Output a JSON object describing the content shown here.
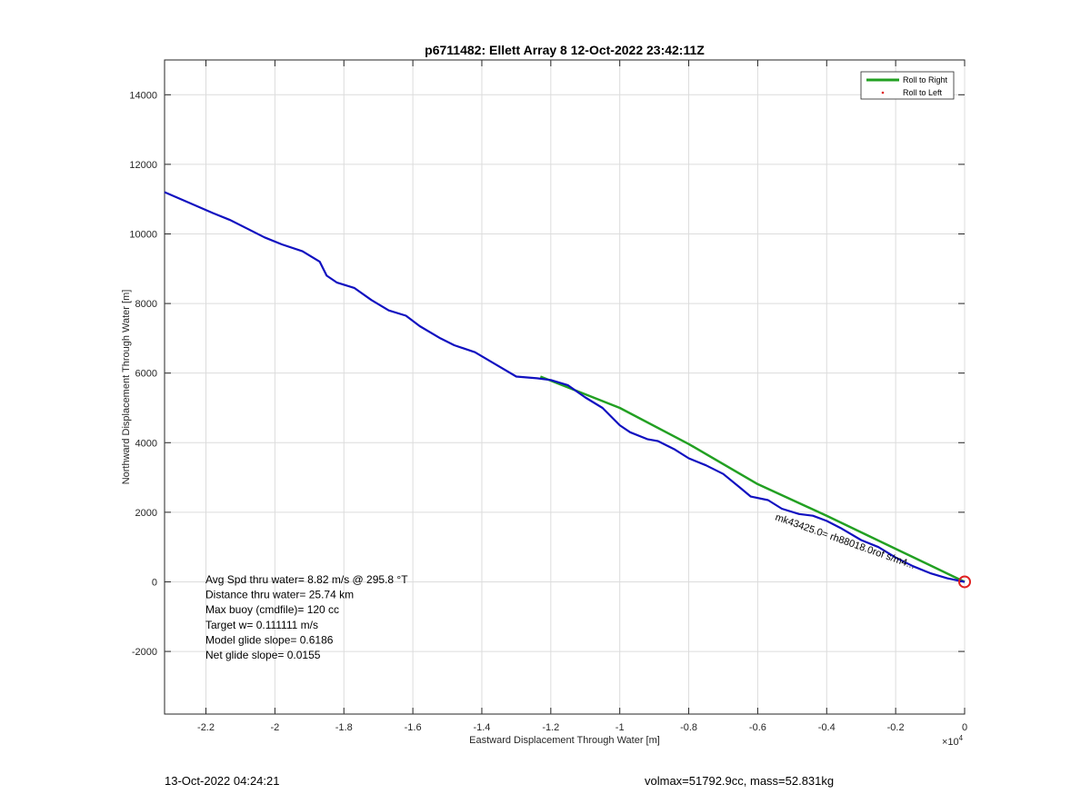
{
  "chart_data": {
    "type": "line",
    "title": "p6711482: Ellett Array 8 12-Oct-2022 23:42:11Z",
    "xlabel": "Eastward Displacement Through Water [m]",
    "ylabel": "Northward Displacement Through Water [m]",
    "x_exponent_label": "× 10^4",
    "xlim": [
      -23200,
      0
    ],
    "ylim": [
      -3800,
      15000
    ],
    "xticks": [
      -22000,
      -20000,
      -18000,
      -16000,
      -14000,
      -12000,
      -10000,
      -8000,
      -6000,
      -4000,
      -2000,
      0
    ],
    "xtick_labels": [
      "-2.2",
      "-2",
      "-1.8",
      "-1.6",
      "-1.4",
      "-1.2",
      "-1",
      "-0.8",
      "-0.6",
      "-0.4",
      "-0.2",
      "0"
    ],
    "yticks": [
      -2000,
      0,
      2000,
      4000,
      6000,
      8000,
      10000,
      12000,
      14000
    ],
    "ytick_labels": [
      "-2000",
      "0",
      "2000",
      "4000",
      "6000",
      "8000",
      "10000",
      "12000",
      "14000"
    ],
    "grid": true,
    "legend_position": "top-right",
    "series": [
      {
        "name": "Roll to Right",
        "color": "#22a022",
        "style": "line",
        "x": [
          -12300,
          -10000,
          -8000,
          -6000,
          -4000,
          -2000,
          0
        ],
        "y": [
          5900,
          5000,
          3960,
          2810,
          1900,
          950,
          0
        ]
      },
      {
        "name": "Roll to Left",
        "color": "#e02020",
        "style": "marker",
        "x": [],
        "y": []
      },
      {
        "name": "",
        "color": "#1010c0",
        "style": "line",
        "x": [
          -23200,
          -22500,
          -21800,
          -21300,
          -20800,
          -20300,
          -19800,
          -19200,
          -18700,
          -18500,
          -18200,
          -17700,
          -17200,
          -16700,
          -16200,
          -15800,
          -15200,
          -14800,
          -14200,
          -13600,
          -13000,
          -12400,
          -12000,
          -11500,
          -11000,
          -10500,
          -10000,
          -9700,
          -9200,
          -8900,
          -8400,
          -8000,
          -7500,
          -7000,
          -6500,
          -6200,
          -5700,
          -5300,
          -4800,
          -4400,
          -4000,
          -3600,
          -3000,
          -2500,
          -2000,
          -1500,
          -1000,
          -500,
          0
        ],
        "y": [
          11200,
          10900,
          10600,
          10400,
          10150,
          9900,
          9700,
          9500,
          9200,
          8800,
          8600,
          8450,
          8100,
          7800,
          7650,
          7350,
          7000,
          6800,
          6600,
          6250,
          5900,
          5850,
          5800,
          5650,
          5300,
          5000,
          4500,
          4300,
          4100,
          4050,
          3800,
          3550,
          3350,
          3100,
          2700,
          2450,
          2350,
          2100,
          1950,
          1900,
          1750,
          1550,
          1200,
          1000,
          700,
          450,
          250,
          100,
          0
        ]
      }
    ],
    "start_marker": {
      "x": 0,
      "y": 0,
      "color": "#e02020"
    },
    "annotations": [
      {
        "text": "Avg Spd thru water=  8.82 m/s @ 295.8 °T"
      },
      {
        "text": "Distance thru water= 25.74 km"
      },
      {
        "text": "Max buoy (cmdfile)= 120 cc"
      },
      {
        "text": "Target w= 0.111111 m/s"
      },
      {
        "text": "Model glide slope= 0.6186"
      },
      {
        "text": "Net glide slope= 0.0155"
      }
    ],
    "rotated_annotation": "mk43425.0= rh88018.0rof s/m4...",
    "footer_left": "13-Oct-2022 04:24:21",
    "footer_right": "volmax=51792.9cc, mass=52.831kg"
  }
}
